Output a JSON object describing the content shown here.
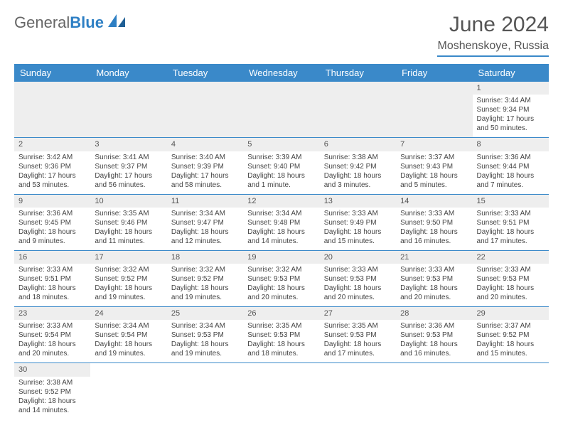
{
  "logo": {
    "part1": "General",
    "part2": "Blue"
  },
  "title": "June 2024",
  "location": "Moshenskoye, Russia",
  "colors": {
    "header_bg": "#3a89c9",
    "header_text": "#ffffff",
    "row_alt_bg": "#eeeeee",
    "text": "#444444",
    "title_text": "#555555",
    "border": "#3a89c9"
  },
  "dayHeaders": [
    "Sunday",
    "Monday",
    "Tuesday",
    "Wednesday",
    "Thursday",
    "Friday",
    "Saturday"
  ],
  "weeks": [
    [
      null,
      null,
      null,
      null,
      null,
      null,
      {
        "n": "1",
        "sr": "Sunrise: 3:44 AM",
        "ss": "Sunset: 9:34 PM",
        "dl": "Daylight: 17 hours and 50 minutes."
      }
    ],
    [
      {
        "n": "2",
        "sr": "Sunrise: 3:42 AM",
        "ss": "Sunset: 9:36 PM",
        "dl": "Daylight: 17 hours and 53 minutes."
      },
      {
        "n": "3",
        "sr": "Sunrise: 3:41 AM",
        "ss": "Sunset: 9:37 PM",
        "dl": "Daylight: 17 hours and 56 minutes."
      },
      {
        "n": "4",
        "sr": "Sunrise: 3:40 AM",
        "ss": "Sunset: 9:39 PM",
        "dl": "Daylight: 17 hours and 58 minutes."
      },
      {
        "n": "5",
        "sr": "Sunrise: 3:39 AM",
        "ss": "Sunset: 9:40 PM",
        "dl": "Daylight: 18 hours and 1 minute."
      },
      {
        "n": "6",
        "sr": "Sunrise: 3:38 AM",
        "ss": "Sunset: 9:42 PM",
        "dl": "Daylight: 18 hours and 3 minutes."
      },
      {
        "n": "7",
        "sr": "Sunrise: 3:37 AM",
        "ss": "Sunset: 9:43 PM",
        "dl": "Daylight: 18 hours and 5 minutes."
      },
      {
        "n": "8",
        "sr": "Sunrise: 3:36 AM",
        "ss": "Sunset: 9:44 PM",
        "dl": "Daylight: 18 hours and 7 minutes."
      }
    ],
    [
      {
        "n": "9",
        "sr": "Sunrise: 3:36 AM",
        "ss": "Sunset: 9:45 PM",
        "dl": "Daylight: 18 hours and 9 minutes."
      },
      {
        "n": "10",
        "sr": "Sunrise: 3:35 AM",
        "ss": "Sunset: 9:46 PM",
        "dl": "Daylight: 18 hours and 11 minutes."
      },
      {
        "n": "11",
        "sr": "Sunrise: 3:34 AM",
        "ss": "Sunset: 9:47 PM",
        "dl": "Daylight: 18 hours and 12 minutes."
      },
      {
        "n": "12",
        "sr": "Sunrise: 3:34 AM",
        "ss": "Sunset: 9:48 PM",
        "dl": "Daylight: 18 hours and 14 minutes."
      },
      {
        "n": "13",
        "sr": "Sunrise: 3:33 AM",
        "ss": "Sunset: 9:49 PM",
        "dl": "Daylight: 18 hours and 15 minutes."
      },
      {
        "n": "14",
        "sr": "Sunrise: 3:33 AM",
        "ss": "Sunset: 9:50 PM",
        "dl": "Daylight: 18 hours and 16 minutes."
      },
      {
        "n": "15",
        "sr": "Sunrise: 3:33 AM",
        "ss": "Sunset: 9:51 PM",
        "dl": "Daylight: 18 hours and 17 minutes."
      }
    ],
    [
      {
        "n": "16",
        "sr": "Sunrise: 3:33 AM",
        "ss": "Sunset: 9:51 PM",
        "dl": "Daylight: 18 hours and 18 minutes."
      },
      {
        "n": "17",
        "sr": "Sunrise: 3:32 AM",
        "ss": "Sunset: 9:52 PM",
        "dl": "Daylight: 18 hours and 19 minutes."
      },
      {
        "n": "18",
        "sr": "Sunrise: 3:32 AM",
        "ss": "Sunset: 9:52 PM",
        "dl": "Daylight: 18 hours and 19 minutes."
      },
      {
        "n": "19",
        "sr": "Sunrise: 3:32 AM",
        "ss": "Sunset: 9:53 PM",
        "dl": "Daylight: 18 hours and 20 minutes."
      },
      {
        "n": "20",
        "sr": "Sunrise: 3:33 AM",
        "ss": "Sunset: 9:53 PM",
        "dl": "Daylight: 18 hours and 20 minutes."
      },
      {
        "n": "21",
        "sr": "Sunrise: 3:33 AM",
        "ss": "Sunset: 9:53 PM",
        "dl": "Daylight: 18 hours and 20 minutes."
      },
      {
        "n": "22",
        "sr": "Sunrise: 3:33 AM",
        "ss": "Sunset: 9:53 PM",
        "dl": "Daylight: 18 hours and 20 minutes."
      }
    ],
    [
      {
        "n": "23",
        "sr": "Sunrise: 3:33 AM",
        "ss": "Sunset: 9:54 PM",
        "dl": "Daylight: 18 hours and 20 minutes."
      },
      {
        "n": "24",
        "sr": "Sunrise: 3:34 AM",
        "ss": "Sunset: 9:54 PM",
        "dl": "Daylight: 18 hours and 19 minutes."
      },
      {
        "n": "25",
        "sr": "Sunrise: 3:34 AM",
        "ss": "Sunset: 9:53 PM",
        "dl": "Daylight: 18 hours and 19 minutes."
      },
      {
        "n": "26",
        "sr": "Sunrise: 3:35 AM",
        "ss": "Sunset: 9:53 PM",
        "dl": "Daylight: 18 hours and 18 minutes."
      },
      {
        "n": "27",
        "sr": "Sunrise: 3:35 AM",
        "ss": "Sunset: 9:53 PM",
        "dl": "Daylight: 18 hours and 17 minutes."
      },
      {
        "n": "28",
        "sr": "Sunrise: 3:36 AM",
        "ss": "Sunset: 9:53 PM",
        "dl": "Daylight: 18 hours and 16 minutes."
      },
      {
        "n": "29",
        "sr": "Sunrise: 3:37 AM",
        "ss": "Sunset: 9:52 PM",
        "dl": "Daylight: 18 hours and 15 minutes."
      }
    ],
    [
      {
        "n": "30",
        "sr": "Sunrise: 3:38 AM",
        "ss": "Sunset: 9:52 PM",
        "dl": "Daylight: 18 hours and 14 minutes."
      },
      null,
      null,
      null,
      null,
      null,
      null
    ]
  ]
}
